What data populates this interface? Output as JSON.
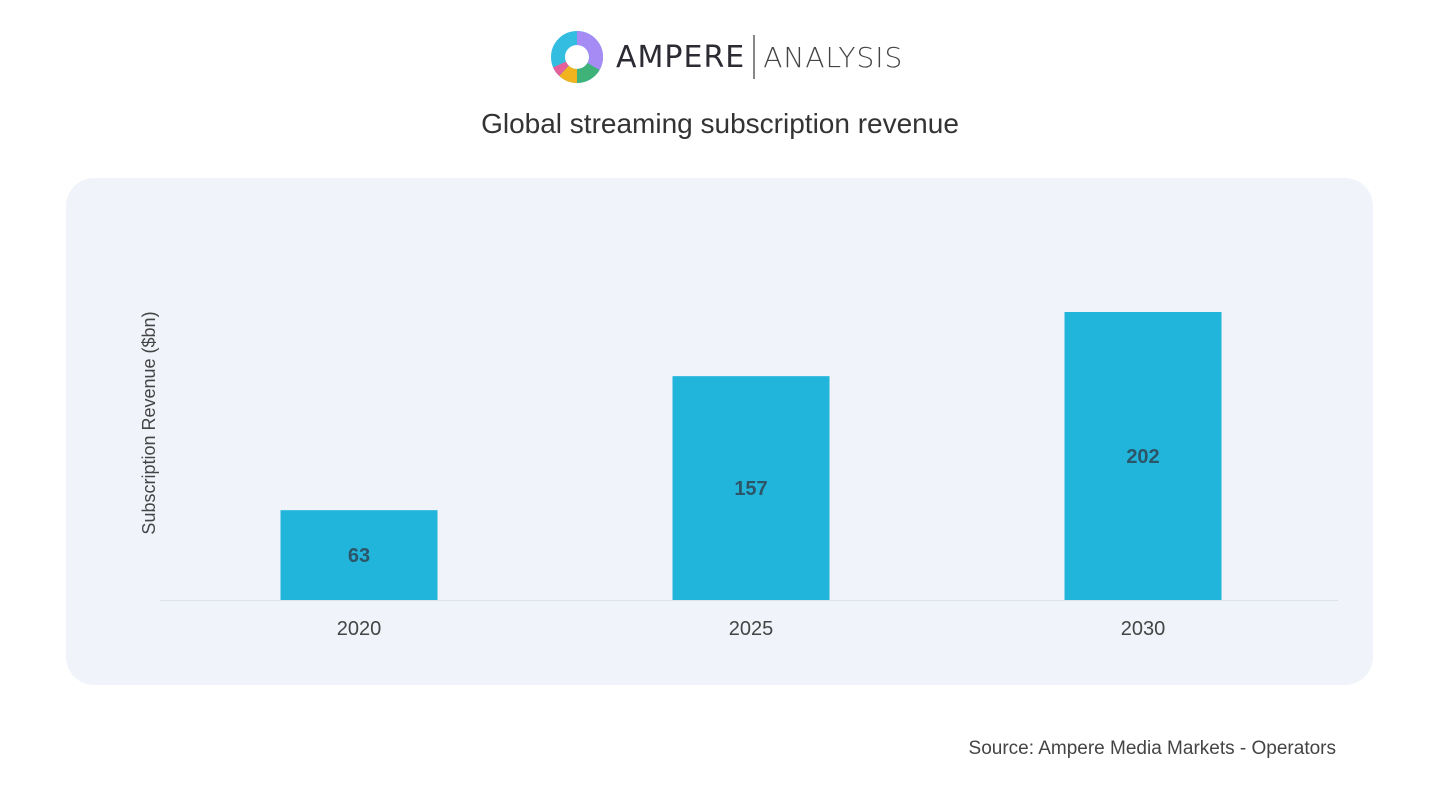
{
  "logo": {
    "text_primary": "AMPERE",
    "text_secondary": "ANALYSIS"
  },
  "chart_data": {
    "type": "bar",
    "title": "Global streaming subscription revenue",
    "xlabel": "",
    "ylabel": "Subscription Revenue ($bn)",
    "categories": [
      "2020",
      "2025",
      "2030"
    ],
    "values": [
      63,
      157,
      202
    ],
    "data_labels": [
      "63",
      "157",
      "202"
    ],
    "ylim": [
      0,
      202
    ],
    "grid": false,
    "bar_color": "#22b5dc",
    "panel_color": "#f0f4fa"
  },
  "source": "Source: Ampere Media Markets - Operators"
}
